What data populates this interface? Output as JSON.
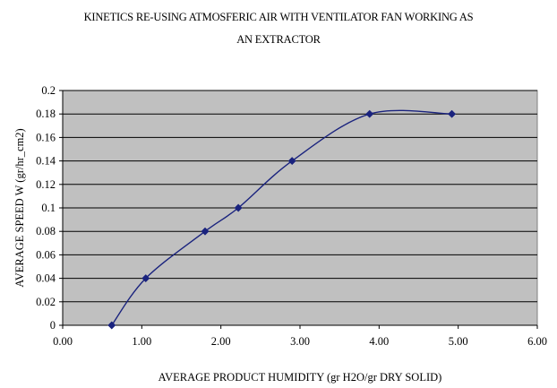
{
  "chart_data": {
    "type": "line",
    "title_lines": [
      "KINETICS RE-USING ATMOSFERIC AIR WITH VENTILATOR FAN WORKING AS",
      "AN EXTRACTOR"
    ],
    "xlabel": "AVERAGE PRODUCT HUMIDITY (gr H2O/gr DRY SOLID)",
    "ylabel": "AVERAGE SPEED W (gr/hr_cm2)",
    "xlim": [
      0,
      6
    ],
    "ylim": [
      0,
      0.2
    ],
    "x_ticks": [
      {
        "value": 0,
        "label": "0.00"
      },
      {
        "value": 1,
        "label": "1.00"
      },
      {
        "value": 2,
        "label": "2.00"
      },
      {
        "value": 3,
        "label": "3.00"
      },
      {
        "value": 4,
        "label": "4.00"
      },
      {
        "value": 5,
        "label": "5.00"
      },
      {
        "value": 6,
        "label": "6.00"
      }
    ],
    "y_ticks": [
      {
        "value": 0,
        "label": "0"
      },
      {
        "value": 0.02,
        "label": "0.02"
      },
      {
        "value": 0.04,
        "label": "0.04"
      },
      {
        "value": 0.06,
        "label": "0.06"
      },
      {
        "value": 0.08,
        "label": "0.08"
      },
      {
        "value": 0.1,
        "label": "0.1"
      },
      {
        "value": 0.12,
        "label": "0.12"
      },
      {
        "value": 0.14,
        "label": "0.14"
      },
      {
        "value": 0.16,
        "label": "0.16"
      },
      {
        "value": 0.18,
        "label": "0.18"
      },
      {
        "value": 0.2,
        "label": "0.2"
      }
    ],
    "grid": "horizontal",
    "legend": "none",
    "series": [
      {
        "x": [
          0.62,
          1.05,
          1.8,
          2.22,
          2.9,
          3.88,
          4.92
        ],
        "y": [
          0.0,
          0.04,
          0.08,
          0.1,
          0.14,
          0.18,
          0.18
        ],
        "color": "#1a237e",
        "marker": "diamond"
      }
    ],
    "plot_background": "#c0c0c0"
  }
}
